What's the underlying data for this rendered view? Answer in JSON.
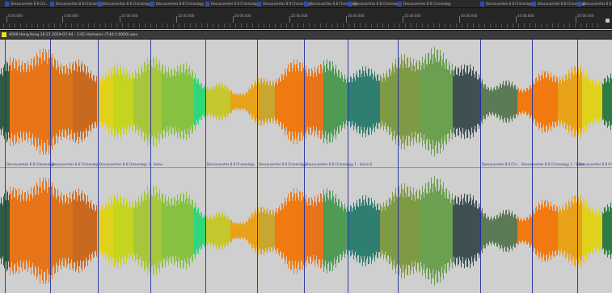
{
  "colors": {
    "marker_flag": "#2f4bb8",
    "region_line": "#1f2ea0",
    "track_swatch": "#e6e21a",
    "wave_background": "#cfcfcf"
  },
  "markers": [
    {
      "label": "Descouvertes 8 8 Chr..."
    },
    {
      "label": "Descouvertes 8 8 Chronology"
    },
    {
      "label": "Descouvertes 8 8 Chronology"
    },
    {
      "label": "Descouvertes 8 8 Chronology"
    },
    {
      "label": "Descouvertes 8 8 Chronology"
    },
    {
      "label": "Descouvertes 8 8 Chronology"
    },
    {
      "label": "Descouvertes 8 8 Chronology"
    },
    {
      "label": "Descouvertes 8 8 Chronology"
    },
    {
      "label": "Descouvertes 8 8 Chronology"
    },
    {
      "label": "Descouvertes 8 8 Chronology"
    },
    {
      "label": "Descouvertes 8 8 Chronology"
    },
    {
      "label": "Descouvertes 8 8 Chronology"
    }
  ],
  "ruler": {
    "labels": [
      "0:00.000",
      "5:00.000",
      "10:00.000",
      "15:00.000",
      "20:00.000",
      "25:00.000",
      "30:00.000",
      "35:00.000",
      "40:00.000",
      "45:00.000",
      "50:00.000"
    ]
  },
  "track": {
    "name": "4000 Hong Kong 10:21 2019-07-04 - 1:02 Harmonic (T:40:1:0000).wav"
  },
  "regions": [
    {
      "label": "Descouvertes 8 8 Chronology"
    },
    {
      "label": "Descouvertes 8 8 Chronology"
    },
    {
      "label": "Descouvertes 8 8 Chronology 1 - Seine"
    },
    {
      "label": "Descouvertes 8 8 Chronology"
    },
    {
      "label": "Descouvertes 8 8 Chronology"
    },
    {
      "label": "Descouvertes 8 8 Chronology 1 - Seine 8"
    },
    {
      "label": "Descouvertes 8 8 Chr..."
    },
    {
      "label": "Descouvertes 8 8 Chronology 1 - Seine"
    },
    {
      "label": "Descouvertes 8 8 Chronol..."
    }
  ]
}
